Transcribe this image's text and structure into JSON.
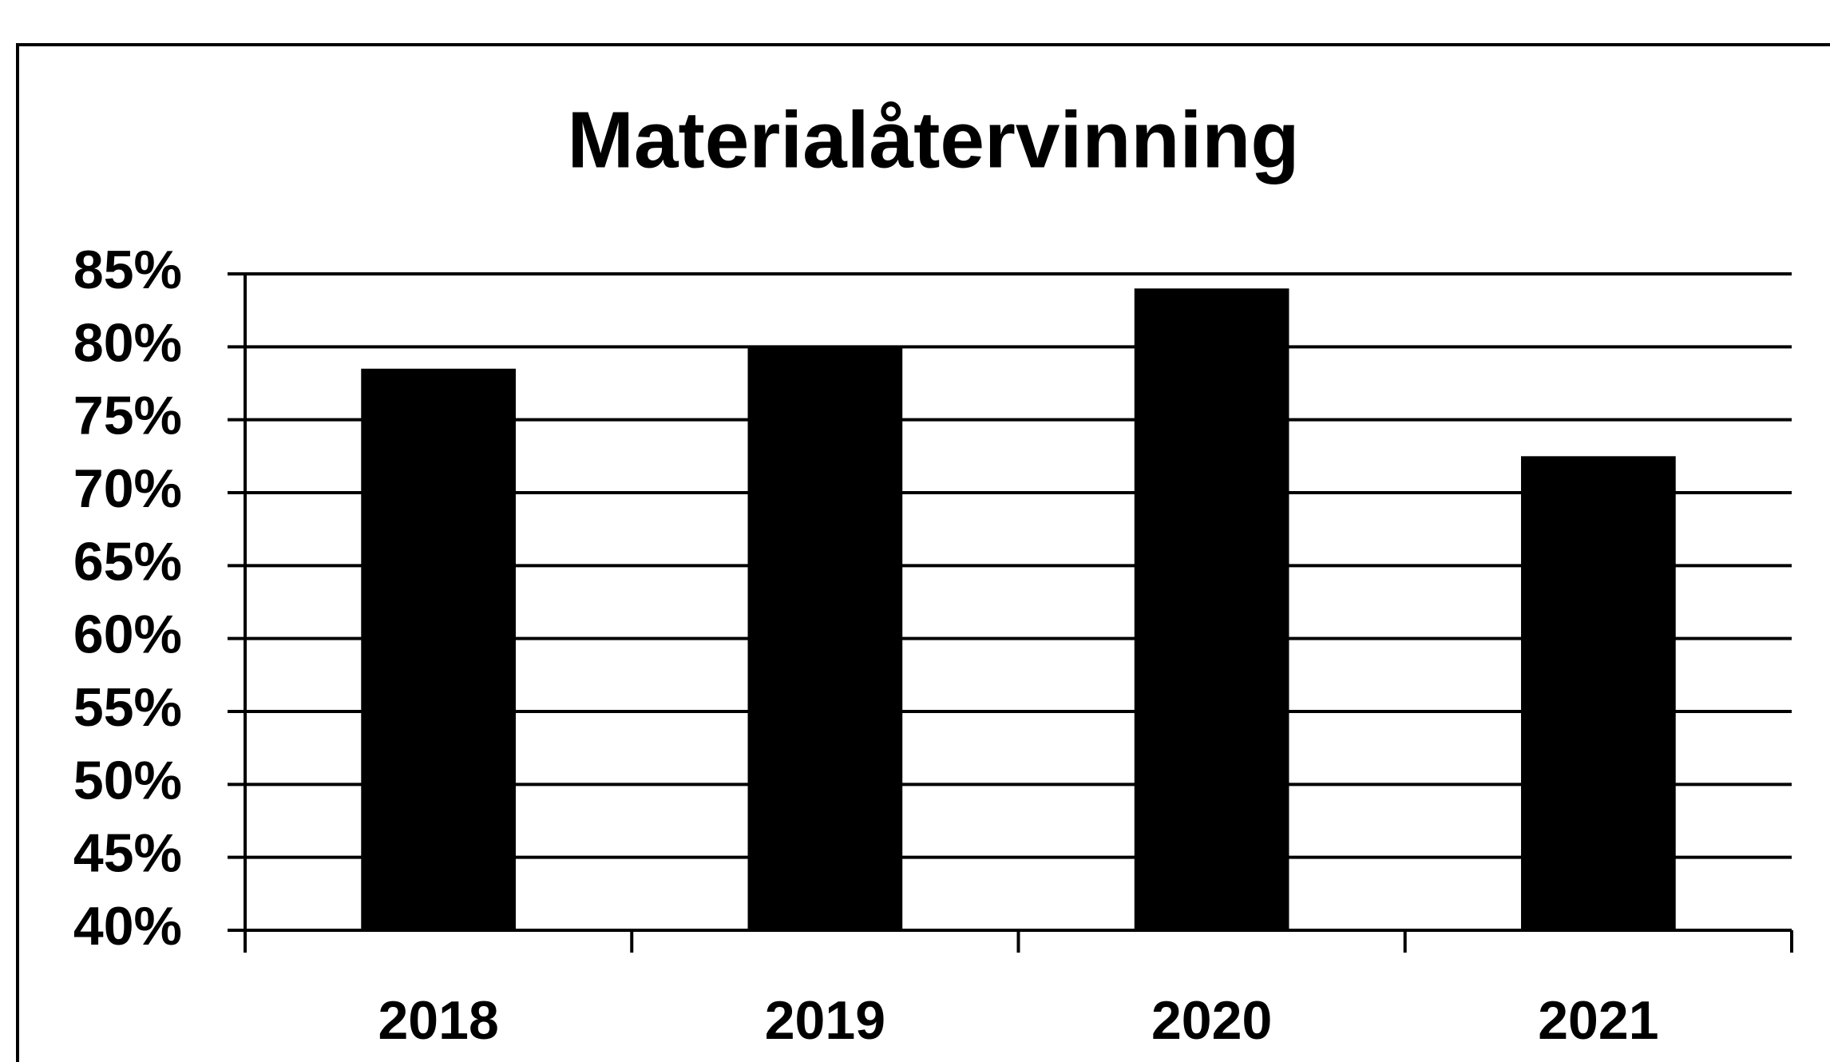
{
  "chart_data": {
    "type": "bar",
    "title": "Materialåtervinning",
    "categories": [
      "2018",
      "2019",
      "2020",
      "2021"
    ],
    "values": [
      78.5,
      80,
      84,
      72.5
    ],
    "color": "#000000",
    "ylim": [
      40,
      85
    ],
    "yticks": [
      {
        "value": 40,
        "label": "40%"
      },
      {
        "value": 45,
        "label": "45%"
      },
      {
        "value": 50,
        "label": "50%"
      },
      {
        "value": 55,
        "label": "55%"
      },
      {
        "value": 60,
        "label": "60%"
      },
      {
        "value": 65,
        "label": "65%"
      },
      {
        "value": 70,
        "label": "70%"
      },
      {
        "value": 75,
        "label": "75%"
      },
      {
        "value": 80,
        "label": "80%"
      },
      {
        "value": 85,
        "label": "85%"
      }
    ],
    "grid": true
  }
}
